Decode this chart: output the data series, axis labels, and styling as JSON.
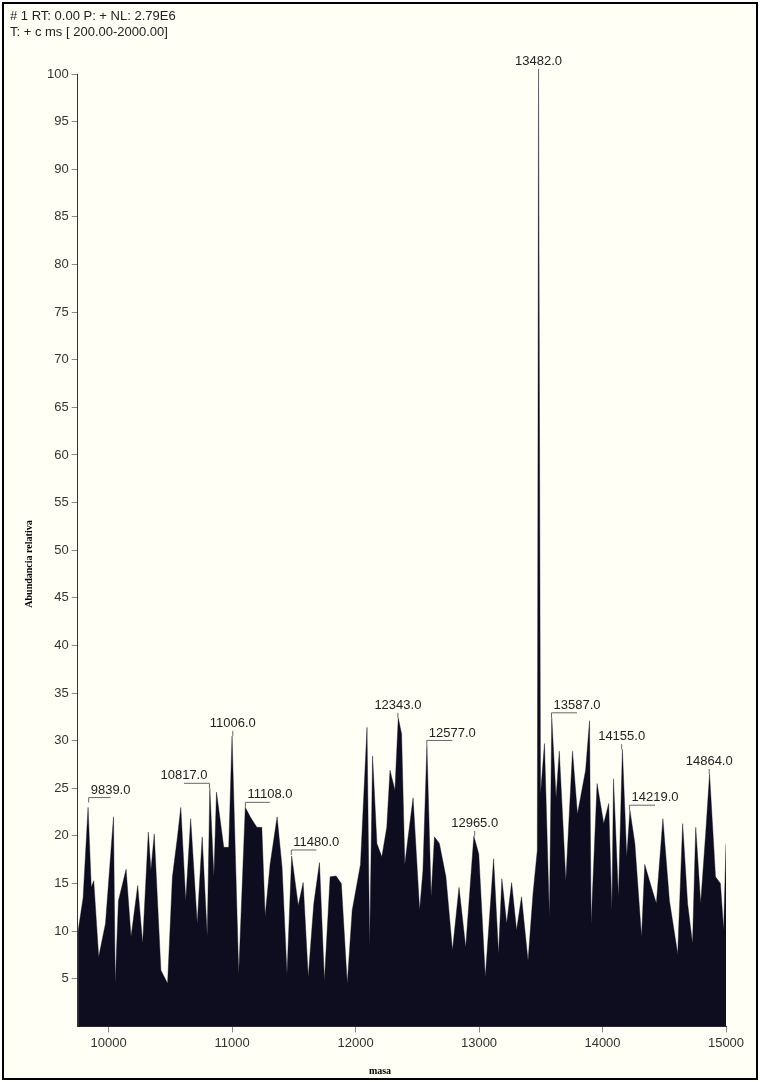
{
  "chart_data": {
    "type": "area",
    "xlabel": "masa",
    "ylabel": "Abundancia relativa",
    "annotations": [
      "# 1  RT: 0.00  P: +  NL: 2.79E6",
      "T: + c ms [ 200.00-2000.00]",
      {
        "text": "9839.0",
        "x": 9839,
        "y": 23.5
      },
      {
        "text": "10817.0",
        "x": 10817,
        "y": 25
      },
      {
        "text": "11006.0",
        "x": 11006,
        "y": 30.5
      },
      {
        "text": "11108.0",
        "x": 11108,
        "y": 23
      },
      {
        "text": "11480.0",
        "x": 11480,
        "y": 18
      },
      {
        "text": "12343.0",
        "x": 12343,
        "y": 32.4
      },
      {
        "text": "12577.0",
        "x": 12577,
        "y": 29.5
      },
      {
        "text": "12965.0",
        "x": 12965,
        "y": 20
      },
      {
        "text": "13482.0",
        "x": 13482,
        "y": 100
      },
      {
        "text": "13587.0",
        "x": 13587,
        "y": 32.4
      },
      {
        "text": "14155.0",
        "x": 14155,
        "y": 29.1
      },
      {
        "text": "14219.0",
        "x": 14219,
        "y": 22.7
      },
      {
        "text": "14864.0",
        "x": 14864,
        "y": 26.5
      }
    ],
    "x": [
      9753,
      9794,
      9834,
      9860,
      9880,
      9920,
      9975,
      10040,
      10054,
      10080,
      10142,
      10182,
      10236,
      10276,
      10322,
      10343,
      10370,
      10424,
      10478,
      10517,
      10558,
      10585,
      10625,
      10665,
      10718,
      10758,
      10799,
      10820,
      10853,
      10874,
      10933,
      10973,
      11000,
      11054,
      11107,
      11147,
      11201,
      11241,
      11268,
      11308,
      11365,
      11405,
      11445,
      11483,
      11536,
      11576,
      11617,
      11662,
      11708,
      11748,
      11794,
      11842,
      11885,
      11933,
      11973,
      12040,
      12093,
      12114,
      12138,
      12173,
      12213,
      12253,
      12279,
      12319,
      12346,
      12373,
      12399,
      12426,
      12466,
      12519,
      12546,
      12578,
      12612,
      12639,
      12679,
      12732,
      12785,
      12838,
      12892,
      12958,
      12998,
      13051,
      13118,
      13158,
      13185,
      13224,
      13264,
      13304,
      13344,
      13397,
      13437,
      13472,
      13482,
      13498,
      13530,
      13570,
      13589,
      13624,
      13650,
      13703,
      13757,
      13797,
      13863,
      13895,
      13908,
      13956,
      14010,
      14050,
      14076,
      14089,
      14129,
      14161,
      14196,
      14222,
      14262,
      14316,
      14342,
      14396,
      14436,
      14489,
      14542,
      14609,
      14649,
      14689,
      14729,
      14755,
      14795,
      14835,
      14867,
      14915,
      14955,
      14981,
      15000
    ],
    "series": [
      {
        "color": "#0d0d1f",
        "values": [
          10,
          13.5,
          23,
          14.6,
          15.3,
          7.3,
          10.8,
          22,
          4.5,
          13.2,
          16.5,
          9.4,
          14.8,
          8.7,
          20.4,
          16.4,
          20.2,
          5.9,
          4.5,
          15.7,
          19.9,
          23,
          13.2,
          21.8,
          10.8,
          19.9,
          9.5,
          25,
          15.7,
          24.6,
          18.8,
          18.8,
          30.5,
          5.5,
          23,
          22,
          20.9,
          20.9,
          11.6,
          17,
          22,
          16.7,
          5.5,
          17.9,
          12.7,
          15.1,
          5.2,
          12.9,
          17.2,
          4.8,
          15.7,
          15.8,
          15,
          4.5,
          12.2,
          17,
          31.4,
          8.3,
          28.4,
          19.2,
          17.8,
          20.9,
          26.9,
          24.8,
          32.4,
          30.7,
          17,
          19.9,
          24,
          12.2,
          16.4,
          29.5,
          13.6,
          19.9,
          19.2,
          15.7,
          8,
          14.6,
          8.3,
          20,
          18.1,
          5.2,
          17.6,
          7.6,
          15.5,
          10.8,
          15.1,
          10.1,
          13.6,
          6.9,
          13.9,
          18.5,
          100,
          24.4,
          29.7,
          11.5,
          32.4,
          24,
          28.9,
          15.3,
          28.9,
          22.3,
          26.9,
          32.1,
          10.8,
          25.5,
          21.3,
          23.4,
          12.2,
          26,
          13.6,
          29.1,
          17.8,
          22.7,
          19.2,
          9.4,
          17,
          14.6,
          12.9,
          21.8,
          13.2,
          7.6,
          21.3,
          12.9,
          8.7,
          20.9,
          12.9,
          20.2,
          26.5,
          15.7,
          15,
          10.1,
          19.2
        ]
      }
    ],
    "xlim": [
      9750,
      15000
    ],
    "xticks": [
      10000,
      11000,
      12000,
      13000,
      14000,
      15000
    ],
    "ylim": [
      0,
      100
    ],
    "yticks": [
      5,
      10,
      15,
      20,
      25,
      30,
      35,
      40,
      45,
      50,
      55,
      60,
      65,
      70,
      75,
      80,
      85,
      90,
      95,
      100
    ],
    "grid": false,
    "legend": false,
    "marker": "none",
    "line_style": "solid"
  }
}
